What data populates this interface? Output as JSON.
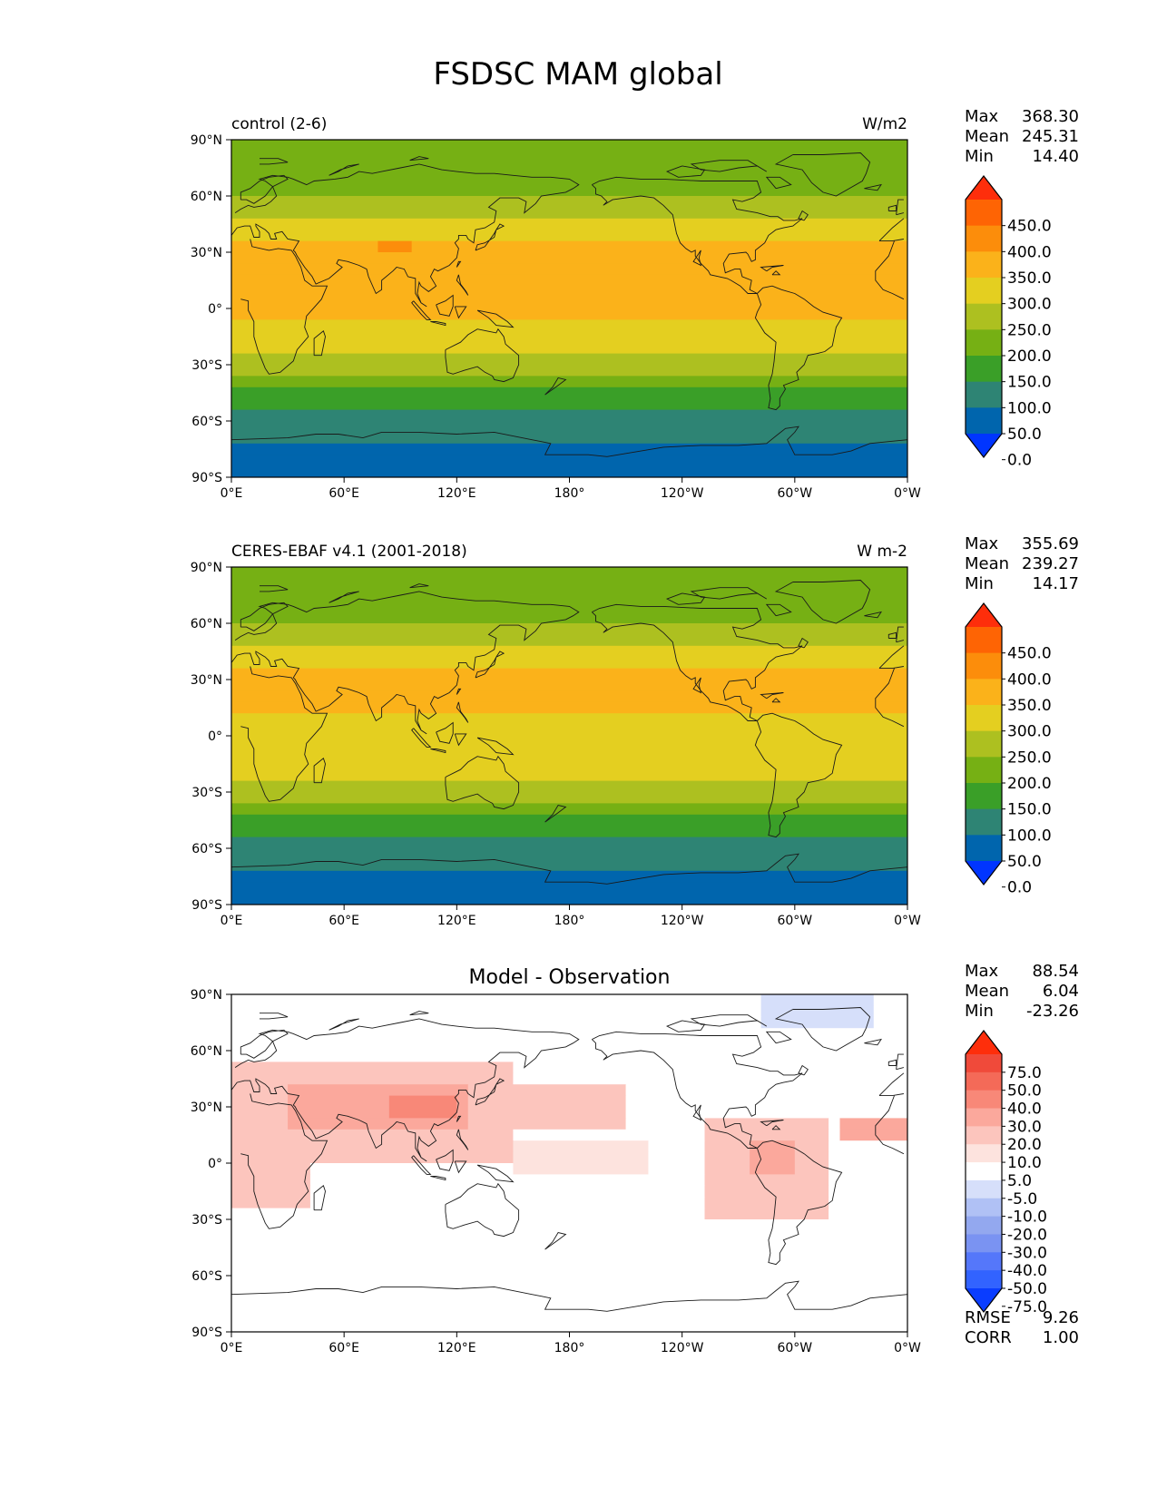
{
  "title": "FSDSC MAM global",
  "lat_labels": [
    "90°N",
    "60°N",
    "30°N",
    "0°",
    "30°S",
    "60°S",
    "90°S"
  ],
  "lon_labels": [
    "0°E",
    "60°E",
    "120°E",
    "180°",
    "120°W",
    "60°W",
    "0°W"
  ],
  "stat_labels": {
    "max": "Max",
    "mean": "Mean",
    "min": "Min",
    "rmse": "RMSE",
    "corr": "CORR"
  },
  "colors": {
    "abs_levels": [
      "#0035ff",
      "#0065ad",
      "#2e8474",
      "#3a9f28",
      "#76b014",
      "#adc020",
      "#e4cf20",
      "#fbb21a",
      "#fc8d0b",
      "#fe6404",
      "#fe2e0b"
    ],
    "diff_levels": [
      "#0a3dff",
      "#3263ff",
      "#5577fa",
      "#7a93f2",
      "#93a8ef",
      "#b0c1f5",
      "#d6dffa",
      "#ffffff",
      "#fde3de",
      "#fcc5bd",
      "#fba89c",
      "#f88878",
      "#f46a58",
      "#f04a3a",
      "#fe2e0b"
    ],
    "coastline": "#1a1a1a"
  },
  "panels": [
    {
      "id": "control",
      "left_title": "control (2-6)",
      "right_title": "W/m2",
      "center_title": "",
      "stats": {
        "max": "368.30",
        "mean": "245.31",
        "min": "14.40"
      },
      "colorbar_ticks": [
        "450.0",
        "400.0",
        "350.0",
        "300.0",
        "250.0",
        "200.0",
        "150.0",
        "100.0",
        "50.0",
        "0.0"
      ],
      "field": "model",
      "color_scale": "abs_levels"
    },
    {
      "id": "observation",
      "left_title": "CERES-EBAF v4.1 (2001-2018)",
      "right_title": "W m-2",
      "center_title": "",
      "stats": {
        "max": "355.69",
        "mean": "239.27",
        "min": "14.17"
      },
      "colorbar_ticks": [
        "450.0",
        "400.0",
        "350.0",
        "300.0",
        "250.0",
        "200.0",
        "150.0",
        "100.0",
        "50.0",
        "0.0"
      ],
      "field": "obs",
      "color_scale": "abs_levels"
    },
    {
      "id": "difference",
      "left_title": "",
      "right_title": "",
      "center_title": "Model - Observation",
      "stats": {
        "max": "88.54",
        "mean": "6.04",
        "min": "-23.26",
        "rmse": "9.26",
        "corr": "1.00"
      },
      "colorbar_ticks": [
        "75.0",
        "50.0",
        "40.0",
        "30.0",
        "20.0",
        "10.0",
        "5.0",
        "-5.0",
        "-10.0",
        "-20.0",
        "-30.0",
        "-40.0",
        "-50.0",
        "-75.0"
      ],
      "field": "diff",
      "color_scale": "diff_levels"
    }
  ]
}
